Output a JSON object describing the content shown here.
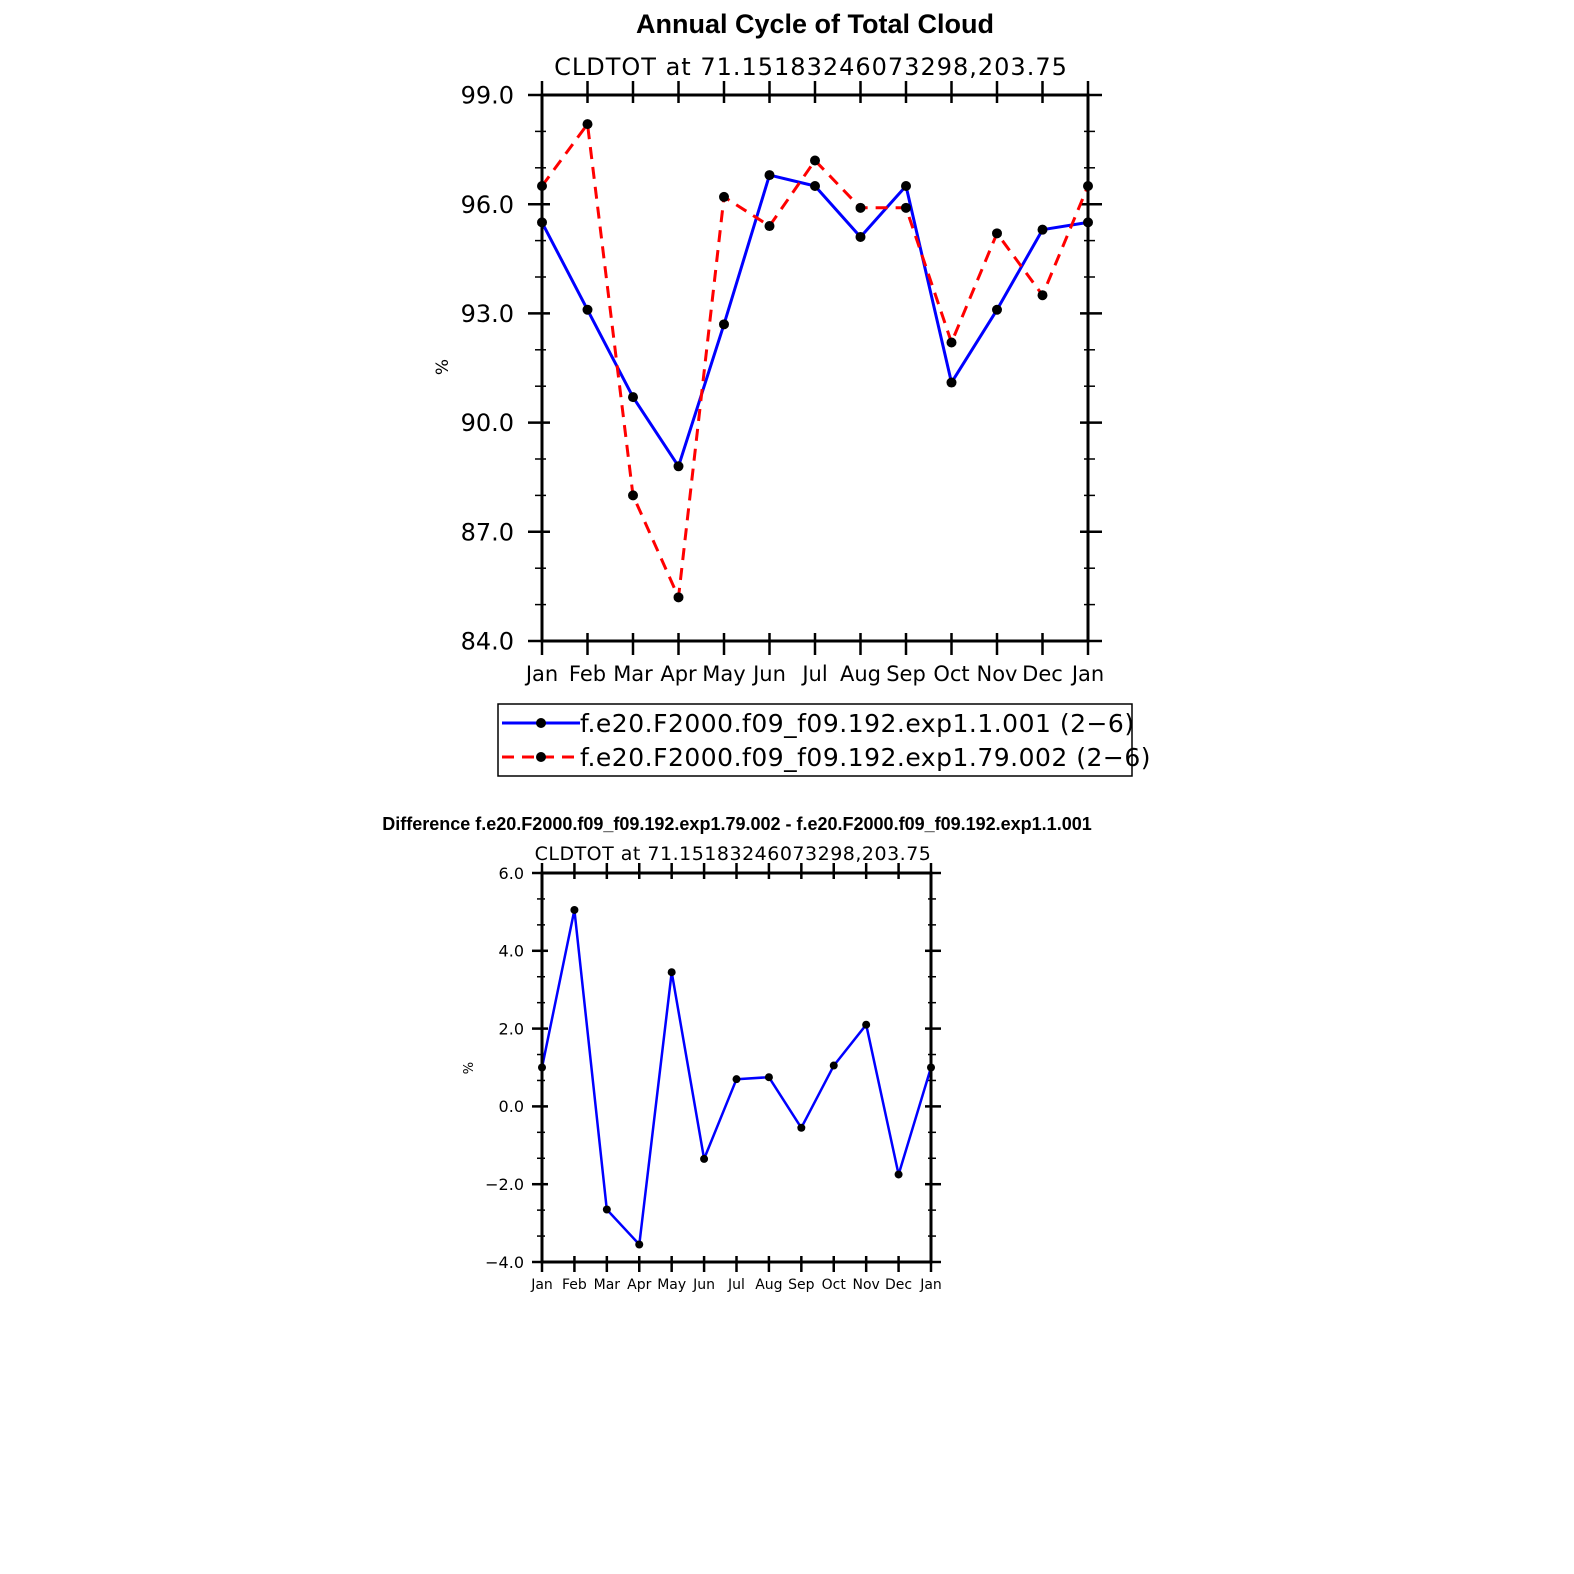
{
  "chart_data": [
    {
      "type": "line",
      "title": "Annual Cycle of Total Cloud",
      "subtitle": "CLDTOT at 71.15183246073298,203.75",
      "xlabel": "",
      "ylabel": "%",
      "categories": [
        "Jan",
        "Feb",
        "Mar",
        "Apr",
        "May",
        "Jun",
        "Jul",
        "Aug",
        "Sep",
        "Oct",
        "Nov",
        "Dec",
        "Jan"
      ],
      "ylim": [
        84.0,
        99.0
      ],
      "yticks": [
        84.0,
        87.0,
        90.0,
        93.0,
        96.0,
        99.0
      ],
      "ytick_labels": [
        "84.0",
        "87.0",
        "90.0",
        "93.0",
        "96.0",
        "99.0"
      ],
      "grid": false,
      "legend_position": "bottom",
      "series": [
        {
          "name": "f.e20.F2000.f09_f09.192.exp1.1.001 (2−6)",
          "color": "#0000ff",
          "dash": "solid",
          "values": [
            95.5,
            93.1,
            90.7,
            88.8,
            92.7,
            96.8,
            96.5,
            95.1,
            96.5,
            91.1,
            93.1,
            95.3,
            95.5
          ]
        },
        {
          "name": "f.e20.F2000.f09_f09.192.exp1.79.002 (2−6)",
          "color": "#ff0000",
          "dash": "dashed",
          "values": [
            96.5,
            98.2,
            88.0,
            85.2,
            96.2,
            95.4,
            97.2,
            95.9,
            95.9,
            92.2,
            95.2,
            93.5,
            96.5
          ]
        }
      ]
    },
    {
      "type": "line",
      "title": "Difference f.e20.F2000.f09_f09.192.exp1.79.002 - f.e20.F2000.f09_f09.192.exp1.1.001",
      "subtitle": "CLDTOT at 71.15183246073298,203.75",
      "xlabel": "",
      "ylabel": "%",
      "categories": [
        "Jan",
        "Feb",
        "Mar",
        "Apr",
        "May",
        "Jun",
        "Jul",
        "Aug",
        "Sep",
        "Oct",
        "Nov",
        "Dec",
        "Jan"
      ],
      "ylim": [
        -4.0,
        6.0
      ],
      "yticks": [
        -4.0,
        -2.0,
        0.0,
        2.0,
        4.0,
        6.0
      ],
      "ytick_labels": [
        "−4.0",
        "−2.0",
        "0.0",
        "2.0",
        "4.0",
        "6.0"
      ],
      "grid": false,
      "series": [
        {
          "color": "#0000ff",
          "dash": "solid",
          "values": [
            1.0,
            5.05,
            -2.65,
            -3.55,
            3.45,
            -1.35,
            0.7,
            0.75,
            -0.55,
            1.05,
            2.1,
            -1.75,
            1.0
          ]
        }
      ]
    }
  ]
}
